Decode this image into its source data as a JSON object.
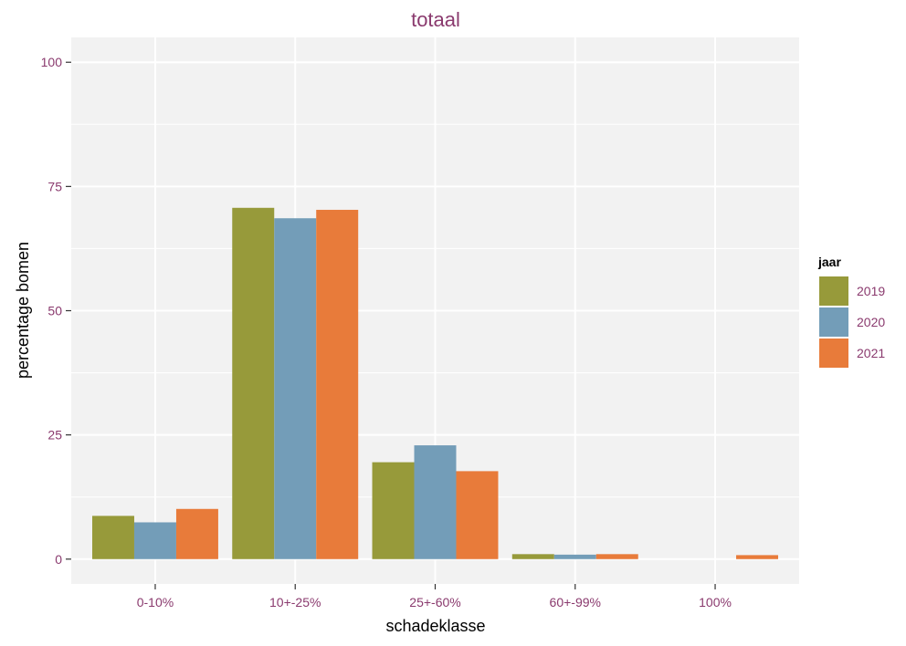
{
  "chart_data": {
    "type": "bar",
    "title": "totaal",
    "xlabel": "schadeklasse",
    "ylabel": "percentage bomen",
    "categories": [
      "0-10%",
      "10+-25%",
      "25+-60%",
      "60+-99%",
      "100%"
    ],
    "series": [
      {
        "name": "2019",
        "color": "#979a3a",
        "values": [
          8.7,
          70.7,
          19.5,
          1.0,
          0.0
        ]
      },
      {
        "name": "2020",
        "color": "#739db8",
        "values": [
          7.4,
          68.6,
          22.9,
          0.9,
          0.0
        ]
      },
      {
        "name": "2021",
        "color": "#e87b3a",
        "values": [
          10.1,
          70.3,
          17.7,
          1.0,
          0.8
        ]
      }
    ],
    "ylim": [
      -5,
      105
    ],
    "yticks": [
      0,
      25,
      50,
      75,
      100
    ],
    "legend": {
      "title": "jaar",
      "position": "right"
    },
    "grid": true,
    "panel_background": "#f2f2f2",
    "grid_color": "#ffffff"
  }
}
